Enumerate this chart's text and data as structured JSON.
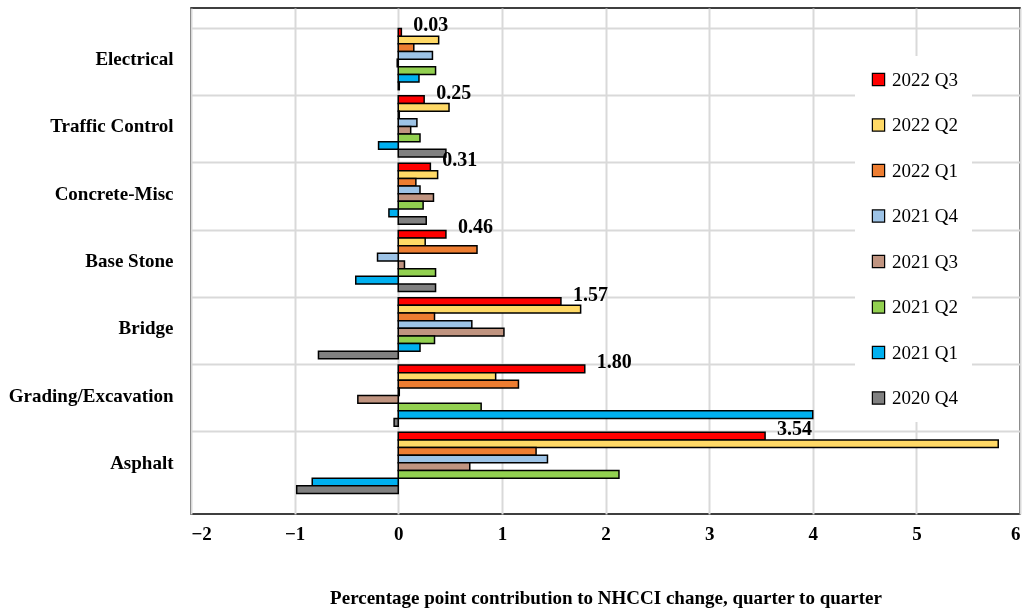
{
  "chart_data": {
    "type": "bar",
    "orientation": "horizontal",
    "xlabel": "Percentage point contribution to NHCCI change, quarter to quarter",
    "categories": [
      "Electrical",
      "Traffic Control",
      "Concrete-Misc",
      "Base Stone",
      "Bridge",
      "Grading/Excavation",
      "Asphalt"
    ],
    "series": [
      {
        "name": "2022 Q3",
        "color": "#ff0000",
        "values": [
          0.03,
          0.25,
          0.31,
          0.46,
          1.57,
          1.8,
          3.54
        ],
        "value_labels": [
          "0.03",
          "0.25",
          "0.31",
          "0.46",
          "1.57",
          "1.80",
          "3.54"
        ]
      },
      {
        "name": "2022 Q2",
        "color": "#ffd966",
        "values": [
          0.39,
          0.49,
          0.38,
          0.26,
          1.76,
          0.94,
          5.79
        ]
      },
      {
        "name": "2022 Q1",
        "color": "#ed7d31",
        "values": [
          0.15,
          0.01,
          0.17,
          0.76,
          0.35,
          1.16,
          1.33
        ]
      },
      {
        "name": "2021 Q4",
        "color": "#9dc3e6",
        "values": [
          0.33,
          0.18,
          0.21,
          -0.2,
          0.71,
          0.01,
          1.44
        ]
      },
      {
        "name": "2021 Q3",
        "color": "#c09480",
        "values": [
          -0.01,
          0.12,
          0.34,
          0.06,
          1.02,
          -0.39,
          0.69
        ]
      },
      {
        "name": "2021 Q2",
        "color": "#92d050",
        "values": [
          0.36,
          0.21,
          0.24,
          0.36,
          0.35,
          0.8,
          2.13
        ]
      },
      {
        "name": "2021 Q1",
        "color": "#00b0f0",
        "values": [
          0.2,
          -0.19,
          -0.09,
          -0.41,
          0.21,
          4.0,
          -0.83
        ]
      },
      {
        "name": "2020 Q4",
        "color": "#808080",
        "values": [
          0.01,
          0.46,
          0.27,
          0.36,
          -0.77,
          -0.04,
          -0.98
        ]
      }
    ],
    "xlim": [
      -2,
      6
    ],
    "xticks": [
      -2,
      -1,
      0,
      1,
      2,
      3,
      4,
      5,
      6
    ],
    "grid": true,
    "legend": "top right"
  }
}
